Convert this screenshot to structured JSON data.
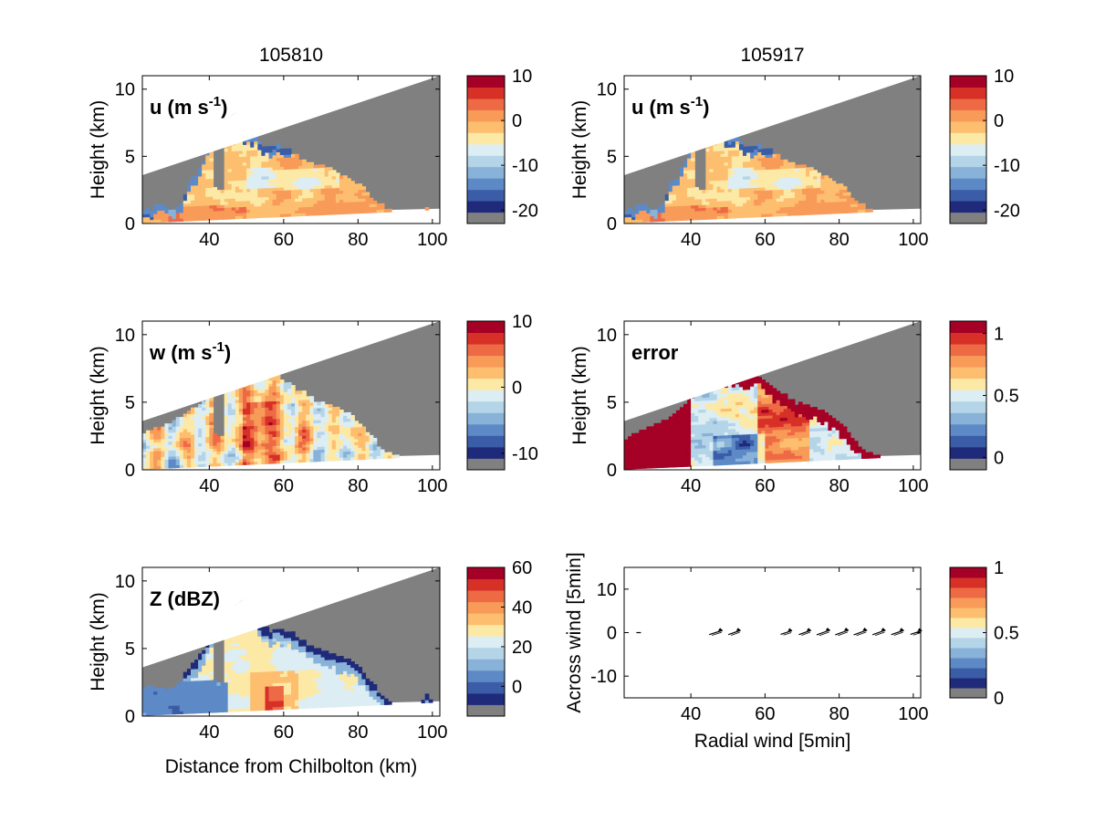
{
  "chart_data": [
    {
      "type": "heatmap",
      "panel": "u-105810",
      "title": "105810",
      "inset_label": "u (m s",
      "inset_sup": "-1",
      "inset_close": ")",
      "ylabel": "Height (km)",
      "xlabel": "",
      "xlim": [
        22,
        102
      ],
      "ylim": [
        0,
        11
      ],
      "xticks": [
        "40",
        "60",
        "80",
        "100"
      ],
      "yticks": [
        "0",
        "5",
        "10"
      ],
      "colorbar": {
        "range": [
          -23,
          10
        ],
        "ticks": [
          "10",
          "0",
          "-10",
          "-20"
        ],
        "nlevels": 12
      },
      "field": "u",
      "echo_top_km": [
        0.9,
        1.1,
        1.4,
        1.2,
        1.0,
        1.3,
        3.2,
        3.6,
        4.6,
        6.3,
        7.3,
        7.7,
        8.2,
        6.8,
        6.4,
        6.5,
        5.7,
        5.7,
        5.8,
        5.6,
        5.3,
        4.8,
        4.6,
        4.4,
        4.3,
        4.1,
        3.7,
        3.4,
        3.1,
        2.8,
        2.4,
        1.7,
        1.3,
        1.1,
        0.9,
        0.8,
        0.8,
        0.8,
        1.1,
        0.8,
        0.8
      ]
    },
    {
      "type": "heatmap",
      "panel": "u-105917",
      "title": "105917",
      "inset_label": "u (m s",
      "inset_sup": "-1",
      "inset_close": ")",
      "ylabel": "Height (km)",
      "xlabel": "",
      "xlim": [
        22,
        102
      ],
      "ylim": [
        0,
        11
      ],
      "xticks": [
        "40",
        "60",
        "80",
        "100"
      ],
      "yticks": [
        "0",
        "5",
        "10"
      ],
      "colorbar": {
        "range": [
          -23,
          10
        ],
        "ticks": [
          "10",
          "0",
          "-10",
          "-20"
        ],
        "nlevels": 12
      },
      "field": "u",
      "echo_top_km": [
        0.9,
        1.1,
        1.4,
        1.2,
        1.0,
        1.3,
        3.0,
        3.5,
        4.5,
        6.0,
        7.0,
        7.5,
        8.0,
        6.6,
        6.2,
        6.4,
        5.7,
        5.7,
        5.8,
        5.6,
        5.3,
        4.8,
        4.6,
        4.4,
        4.3,
        4.1,
        3.7,
        3.4,
        3.1,
        2.8,
        2.4,
        1.7,
        1.3,
        1.1,
        0.9,
        0.8,
        0.8,
        0.8,
        1.0,
        0.8,
        0.8
      ]
    },
    {
      "type": "heatmap",
      "panel": "w",
      "title": "",
      "inset_label": "w (m s",
      "inset_sup": "-1",
      "inset_close": ")",
      "ylabel": "Height (km)",
      "xlabel": "",
      "xlim": [
        22,
        102
      ],
      "ylim": [
        0,
        11
      ],
      "xticks": [
        "40",
        "60",
        "80",
        "100"
      ],
      "yticks": [
        "0",
        "5",
        "10"
      ],
      "colorbar": {
        "range": [
          -12.5,
          10
        ],
        "ticks": [
          "10",
          "0",
          "-10"
        ],
        "nlevels": 12
      },
      "field": "w",
      "echo_top_km": [
        2.6,
        2.9,
        3.1,
        3.4,
        3.6,
        3.9,
        4.2,
        4.6,
        5.0,
        6.3,
        7.4,
        8.1,
        8.3,
        8.0,
        7.6,
        7.4,
        7.2,
        7.5,
        7.2,
        6.6,
        6.1,
        5.8,
        5.5,
        5.1,
        4.9,
        4.7,
        4.5,
        4.2,
        3.9,
        3.4,
        2.8,
        2.2,
        1.5,
        1.2,
        1.0,
        0.9,
        0.8,
        0.8,
        0.8,
        0.8,
        0.8
      ]
    },
    {
      "type": "heatmap",
      "panel": "error",
      "title": "",
      "inset_label": "error",
      "ylabel": "Height (km)",
      "xlabel": "",
      "xlim": [
        22,
        102
      ],
      "ylim": [
        0,
        11
      ],
      "xticks": [
        "40",
        "60",
        "80",
        "100"
      ],
      "yticks": [
        "0",
        "5",
        "10"
      ],
      "colorbar": {
        "range": [
          -0.1,
          1.1
        ],
        "ticks": [
          "1",
          "0.5",
          "0"
        ],
        "nlevels": 12
      },
      "field": "error",
      "echo_top_km": [
        2.2,
        2.6,
        2.8,
        3.1,
        3.3,
        3.5,
        3.9,
        4.3,
        4.8,
        6.0,
        6.9,
        7.4,
        7.6,
        7.3,
        7.1,
        7.0,
        6.9,
        7.2,
        7.0,
        6.5,
        6.0,
        5.7,
        5.4,
        5.0,
        4.8,
        4.6,
        4.4,
        4.1,
        3.8,
        3.3,
        2.7,
        2.1,
        1.5,
        1.2,
        1.0,
        0.9,
        0.8,
        0.8,
        0.8,
        0.8,
        0.8
      ]
    },
    {
      "type": "heatmap",
      "panel": "Z",
      "title": "",
      "inset_label": "Z (dBZ)",
      "ylabel": "Height (km)",
      "xlabel": "Distance from Chilbolton (km)",
      "xlim": [
        22,
        102
      ],
      "ylim": [
        0,
        11
      ],
      "xticks": [
        "40",
        "60",
        "80",
        "100"
      ],
      "yticks": [
        "0",
        "5",
        "10"
      ],
      "colorbar": {
        "range": [
          -15,
          60
        ],
        "ticks": [
          "60",
          "40",
          "20",
          "0"
        ],
        "nlevels": 12
      },
      "field": "Z",
      "echo_top_km": [
        2.0,
        2.2,
        2.0,
        1.9,
        2.1,
        2.6,
        3.5,
        4.1,
        4.8,
        6.0,
        6.9,
        7.5,
        7.7,
        8.7,
        8.0,
        7.3,
        6.6,
        6.3,
        6.4,
        6.3,
        6.1,
        5.7,
        5.4,
        5.1,
        4.8,
        4.6,
        4.4,
        4.2,
        4.0,
        3.5,
        2.9,
        2.2,
        1.5,
        1.1,
        0.9,
        0.8,
        0.8,
        0.8,
        1.6,
        0.8,
        0.8
      ]
    },
    {
      "type": "scatter",
      "panel": "quiver",
      "title": "",
      "ylabel": "Across wind [5min]",
      "xlabel": "Radial wind [5min]",
      "xlim": [
        22,
        102
      ],
      "ylim": [
        -15,
        15
      ],
      "xticks": [
        "40",
        "60",
        "80",
        "100"
      ],
      "yticks": [
        "10",
        "0",
        "-10"
      ],
      "colorbar": {
        "range": [
          0,
          1
        ],
        "ticks": [
          "1",
          "0.5",
          "0"
        ],
        "nlevels": 12
      },
      "arrows_x": [
        26,
        47,
        52,
        66,
        71,
        76,
        81,
        86,
        91,
        96,
        101
      ],
      "arrows_y": [
        0,
        0,
        0,
        0,
        0,
        0,
        0,
        0,
        0,
        0,
        0
      ],
      "arrows_du": [
        1.2,
        3.5,
        3.2,
        3.0,
        3.2,
        3.5,
        3.5,
        3.5,
        3.4,
        3.3,
        3.0
      ],
      "arrows_dv": [
        0,
        1.8,
        1.8,
        1.6,
        1.8,
        2.0,
        2.0,
        2.0,
        1.9,
        1.8,
        1.6
      ]
    }
  ],
  "colors": {
    "palette": [
      "#1f2a7a",
      "#3b5da8",
      "#5d8ac6",
      "#88b2d8",
      "#b4d4e8",
      "#dcedf3",
      "#fde9a6",
      "#fdbf6f",
      "#f89a58",
      "#ee6a45",
      "#d73027",
      "#a50026"
    ],
    "masked": "#808080"
  }
}
